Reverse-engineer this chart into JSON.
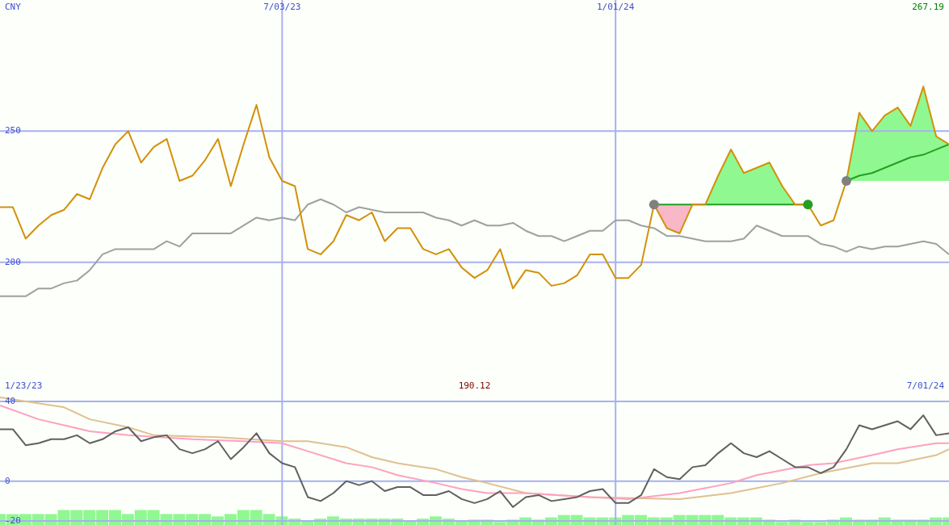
{
  "chart_data": [
    {
      "type": "line",
      "ylabel": "CNY",
      "annotations": [
        "267.19",
        "1/23/23",
        "190.12",
        "7/01/24"
      ],
      "x": [
        "2023-01-30",
        "2023-02-06",
        "2023-02-13",
        "2023-02-20",
        "2023-02-27",
        "2023-03-06",
        "2023-03-13",
        "2023-03-20",
        "2023-03-27",
        "2023-04-03",
        "2023-04-10",
        "2023-04-17",
        "2023-04-24",
        "2023-05-01",
        "2023-05-08",
        "2023-05-15",
        "2023-05-22",
        "2023-05-29",
        "2023-06-05",
        "2023-06-12",
        "2023-06-19",
        "2023-06-26",
        "2023-07-03",
        "2023-07-10",
        "2023-07-17",
        "2023-07-24",
        "2023-07-31",
        "2023-08-07",
        "2023-08-14",
        "2023-08-21",
        "2023-08-28",
        "2023-09-04",
        "2023-09-11",
        "2023-09-18",
        "2023-09-25",
        "2023-10-02",
        "2023-10-09",
        "2023-10-16",
        "2023-10-23",
        "2023-10-30",
        "2023-11-06",
        "2023-11-13",
        "2023-11-20",
        "2023-11-27",
        "2023-12-04",
        "2023-12-11",
        "2023-12-18",
        "2023-12-25",
        "2024-01-01",
        "2024-01-08",
        "2024-01-15",
        "2024-01-22",
        "2024-01-29",
        "2024-02-05",
        "2024-02-12",
        "2024-02-19",
        "2024-02-26",
        "2024-03-04",
        "2024-03-11",
        "2024-03-18",
        "2024-03-25",
        "2024-04-01",
        "2024-04-08",
        "2024-04-15",
        "2024-04-22",
        "2024-04-29",
        "2024-05-06",
        "2024-05-13",
        "2024-05-20",
        "2024-05-27",
        "2024-06-03",
        "2024-06-10",
        "2024-06-17",
        "2024-06-24",
        "2024-07-01"
      ],
      "series": [
        {
          "type": "line",
          "color": "#22a022",
          "x": [
            "2024-01-22",
            "2024-01-29",
            "2024-02-05",
            "2024-02-12",
            "2024-02-19",
            "2024-02-26",
            "2024-03-04",
            "2024-03-11",
            "2024-03-18",
            "2024-03-25",
            "2024-04-01",
            "2024-04-08",
            "2024-04-15"
          ],
          "values": [
            222,
            222,
            222,
            222,
            222,
            222,
            222,
            222,
            222,
            222,
            222,
            222,
            222
          ],
          "lower": [
            222,
            213,
            211,
            222,
            222,
            222,
            222,
            222,
            222,
            222,
            222,
            222,
            222
          ],
          "upper": [
            222,
            222,
            222,
            222,
            222,
            233,
            243,
            234,
            236,
            238,
            229,
            222,
            222
          ]
        },
        {
          "type": "line",
          "color": "#22a022",
          "x": [
            "2024-05-06",
            "2024-05-13",
            "2024-05-20",
            "2024-05-27",
            "2024-06-03",
            "2024-06-10",
            "2024-06-17",
            "2024-06-24",
            "2024-07-01"
          ],
          "values": [
            231,
            233,
            234,
            236,
            238,
            240,
            241,
            243,
            245
          ],
          "lower": [
            231,
            231,
            231,
            231,
            231,
            231,
            231,
            231,
            231
          ],
          "upper": [
            231,
            257,
            250,
            256,
            259,
            252,
            267,
            248,
            245
          ]
        },
        {
          "color": "#a0a0a0",
          "values": [
            187,
            187,
            187,
            190,
            190,
            192,
            193,
            197,
            203,
            205,
            205,
            205,
            205,
            208,
            206,
            211,
            211,
            211,
            211,
            214,
            217,
            216,
            217,
            216,
            222,
            224,
            222,
            219,
            221,
            220,
            219,
            219,
            219,
            219,
            217,
            216,
            214,
            216,
            214,
            214,
            215,
            212,
            210,
            210,
            208,
            210,
            212,
            212,
            216,
            216,
            214,
            213,
            210,
            210,
            209,
            208,
            208,
            208,
            209,
            214,
            212,
            210,
            210,
            210,
            207,
            206,
            204,
            206,
            205,
            206,
            206,
            207,
            208,
            207,
            203
          ]
        },
        {
          "color": "#d4900a",
          "values": [
            221,
            221,
            209,
            214,
            218,
            220,
            226,
            224,
            236,
            245,
            250,
            238,
            244,
            247,
            231,
            233,
            239,
            247,
            229,
            245,
            260,
            240,
            231,
            229,
            205,
            203,
            208,
            218,
            216,
            219,
            208,
            213,
            213,
            205,
            203,
            205,
            198,
            194,
            197,
            205,
            190,
            197,
            196,
            191,
            192,
            195,
            203,
            203,
            194,
            194,
            199,
            222,
            213,
            211,
            222,
            222,
            233,
            243,
            234,
            236,
            238,
            229,
            222,
            222,
            214,
            216,
            231,
            257,
            250,
            256,
            259,
            252,
            267,
            248,
            245
          ]
        },
        {
          "type": "scatter",
          "marker": "circle",
          "colors": [
            "#808080",
            "#22a022",
            "#808080"
          ],
          "x": [
            "2024-01-22",
            "2024-04-15",
            "2024-05-06"
          ],
          "values": [
            222,
            222,
            231
          ]
        }
      ],
      "xlim": [
        "2023-01-30",
        "2024-07-01"
      ],
      "xticks": [
        {
          "value": "2023-07-03",
          "label": "7/03/23"
        },
        {
          "value": "2024-01-01",
          "label": "1/01/24"
        }
      ],
      "ylim": [
        150,
        300
      ],
      "yticks": [
        200,
        250
      ],
      "grid": true
    },
    {
      "type": "line",
      "x": [
        "2023-01-30",
        "2023-02-06",
        "2023-02-13",
        "2023-02-20",
        "2023-02-27",
        "2023-03-06",
        "2023-03-13",
        "2023-03-20",
        "2023-03-27",
        "2023-04-03",
        "2023-04-10",
        "2023-04-17",
        "2023-04-24",
        "2023-05-01",
        "2023-05-08",
        "2023-05-15",
        "2023-05-22",
        "2023-05-29",
        "2023-06-05",
        "2023-06-12",
        "2023-06-19",
        "2023-06-26",
        "2023-07-03",
        "2023-07-10",
        "2023-07-17",
        "2023-07-24",
        "2023-07-31",
        "2023-08-07",
        "2023-08-14",
        "2023-08-21",
        "2023-08-28",
        "2023-09-04",
        "2023-09-11",
        "2023-09-18",
        "2023-09-25",
        "2023-10-02",
        "2023-10-09",
        "2023-10-16",
        "2023-10-23",
        "2023-10-30",
        "2023-11-06",
        "2023-11-13",
        "2023-11-20",
        "2023-11-27",
        "2023-12-04",
        "2023-12-11",
        "2023-12-18",
        "2023-12-25",
        "2024-01-01",
        "2024-01-08",
        "2024-01-15",
        "2024-01-22",
        "2024-01-29",
        "2024-02-05",
        "2024-02-12",
        "2024-02-19",
        "2024-02-26",
        "2024-03-04",
        "2024-03-11",
        "2024-03-18",
        "2024-03-25",
        "2024-04-01",
        "2024-04-08",
        "2024-04-15",
        "2024-04-22",
        "2024-04-29",
        "2024-05-06",
        "2024-05-13",
        "2024-05-20",
        "2024-05-27",
        "2024-06-03",
        "2024-06-10",
        "2024-06-17",
        "2024-06-24",
        "2024-07-01"
      ],
      "series": [
        {
          "type": "bar",
          "color": "#90f890",
          "base": [
            -22,
            -22,
            -22,
            -22,
            -22,
            -22,
            -22,
            -22,
            -22,
            -22,
            -22,
            -22,
            -22,
            -22,
            -22,
            -22,
            -22,
            -22,
            -22,
            -22,
            -22,
            -22,
            -22,
            -22,
            -22,
            -22,
            -22,
            -22,
            -22,
            -22,
            -22,
            -22,
            -22,
            -22,
            -22,
            -22,
            -22,
            -22,
            -22,
            -22,
            -22,
            -22,
            -22,
            -22,
            -22,
            -22,
            -22,
            -22,
            -22,
            -22,
            -22,
            -22,
            -22,
            -22,
            -22,
            -22,
            -22,
            -22,
            -22,
            -22,
            -22,
            -22,
            -22,
            -22,
            -22,
            -22,
            -22,
            -22,
            -22,
            -22,
            -22,
            -22,
            -22,
            -22,
            -22
          ],
          "values": [
            5.5,
            5.5,
            5.5,
            5.5,
            5.5,
            7.5,
            7.5,
            7.5,
            7.5,
            7.5,
            5.5,
            7.5,
            7.5,
            5.5,
            5.5,
            5.5,
            5.5,
            4.3,
            5.5,
            7.5,
            7.5,
            5.5,
            4.3,
            3.2,
            2,
            3.2,
            4.3,
            3.2,
            3.2,
            3.2,
            3.2,
            3.2,
            2,
            3.2,
            4.3,
            3.2,
            2,
            2.7,
            2.7,
            1.5,
            2.7,
            3.8,
            2.7,
            3.8,
            5,
            5,
            3.8,
            3.8,
            3.8,
            5,
            5,
            3.8,
            3.8,
            5,
            5,
            5,
            5,
            3.8,
            3.8,
            3.8,
            2.7,
            1.5,
            2.7,
            1.5,
            1.5,
            2.7,
            3.8,
            2.7,
            2.7,
            3.8,
            2.7,
            2.7,
            2.7,
            3.8,
            3.8
          ]
        },
        {
          "color": "#e0c090",
          "x": [
            "2023-01-30",
            "2023-03-06",
            "2023-03-20",
            "2023-04-10",
            "2023-04-24",
            "2023-05-29",
            "2023-07-03",
            "2023-07-17",
            "2023-08-07",
            "2023-08-21",
            "2023-09-04",
            "2023-09-25",
            "2023-10-09",
            "2023-10-23",
            "2023-11-13",
            "2023-12-18",
            "2024-02-05",
            "2024-03-04",
            "2024-04-01",
            "2024-04-22",
            "2024-05-20",
            "2024-06-03",
            "2024-06-24",
            "2024-07-01"
          ],
          "values": [
            42,
            37,
            31,
            27,
            23,
            22,
            20,
            20,
            17,
            12,
            9,
            6,
            2,
            -1,
            -6,
            -8,
            -9,
            -6,
            -1,
            4,
            9,
            9,
            13,
            16
          ]
        },
        {
          "color": "#ffa0c0",
          "x": [
            "2023-01-30",
            "2023-02-20",
            "2023-03-06",
            "2023-03-20",
            "2023-04-10",
            "2023-05-15",
            "2023-06-12",
            "2023-07-03",
            "2023-07-17",
            "2023-08-07",
            "2023-08-21",
            "2023-09-04",
            "2023-09-25",
            "2023-10-09",
            "2023-10-23",
            "2023-11-13",
            "2023-12-18",
            "2024-01-08",
            "2024-02-05",
            "2024-03-04",
            "2024-03-18",
            "2024-04-15",
            "2024-04-29",
            "2024-05-20",
            "2024-06-03",
            "2024-06-24",
            "2024-07-01"
          ],
          "values": [
            38,
            31,
            28,
            25,
            23,
            21,
            20,
            19,
            15,
            9,
            7,
            3,
            -1,
            -4,
            -6,
            -6,
            -8,
            -9,
            -6,
            -1,
            3,
            8,
            9,
            13,
            16,
            19,
            19
          ]
        },
        {
          "color": "#606060",
          "values": [
            26,
            26,
            18,
            19,
            21,
            21,
            23,
            19,
            21,
            25,
            27,
            20,
            22,
            23,
            16,
            14,
            16,
            20,
            11,
            17,
            24,
            14,
            9,
            7,
            -8,
            -10,
            -6,
            0,
            -2,
            0,
            -5,
            -3,
            -3,
            -7,
            -7,
            -5,
            -9,
            -11,
            -9,
            -5,
            -13,
            -8,
            -7,
            -10,
            -9,
            -8,
            -5,
            -4,
            -11,
            -11,
            -7,
            6,
            2,
            1,
            7,
            8,
            14,
            19,
            14,
            12,
            15,
            11,
            7,
            7,
            4,
            7,
            16,
            28,
            26,
            28,
            30,
            26,
            33,
            23,
            24
          ]
        }
      ],
      "xlim": [
        "2023-01-30",
        "2024-07-01"
      ],
      "xticks": [
        {
          "value": "2023-07-03",
          "label": null
        },
        {
          "value": "2024-01-01",
          "label": null
        }
      ],
      "ylim": [
        -22,
        44
      ],
      "yticks": [
        -20,
        0,
        40
      ],
      "grid": true,
      "tick_labels": "y"
    }
  ]
}
